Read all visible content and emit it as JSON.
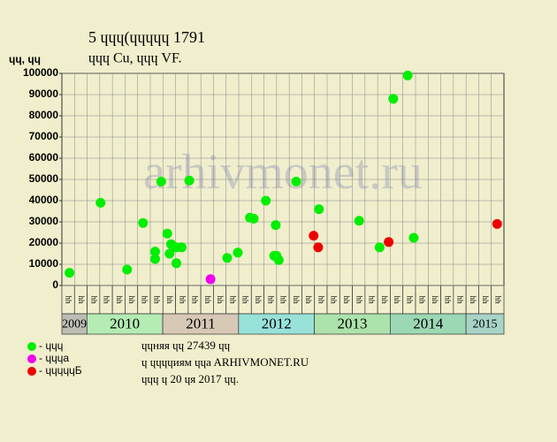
{
  "chart_data": {
    "type": "scatter",
    "title": "5 ɥɥɥ(ɥɥɥɥɥ 1791",
    "subtitle": "ɥɥɥ Cu, ɥɥɥ VF.",
    "ylabel": "ɥɥ, ɥɥ",
    "watermark": "arhivmonet.ru",
    "ylim": [
      0,
      100000
    ],
    "yticks": [
      0,
      10000,
      20000,
      30000,
      40000,
      50000,
      60000,
      70000,
      80000,
      90000,
      100000
    ],
    "xlim": [
      2009.67,
      2015.5
    ],
    "grid": true,
    "years": [
      {
        "label": "2009",
        "color": "#bdbdb5"
      },
      {
        "label": "2010",
        "color": "#b4ecb4"
      },
      {
        "label": "2011",
        "color": "#d8c8b6"
      },
      {
        "label": "2012",
        "color": "#98e2da"
      },
      {
        "label": "2013",
        "color": "#ace2ac"
      },
      {
        "label": "2014",
        "color": "#9cd8b4"
      },
      {
        "label": "2015",
        "color": "#a8d4c8"
      }
    ],
    "period_labels": [
      "ɥɥ",
      "ɥɥ",
      "ɥɥ",
      "ɥɥ",
      "ɥɥ",
      "ɥɥ",
      "ɥɥ",
      "ɥɥ",
      "ɥɥ",
      "ɥɥ",
      "ɥɥ",
      "ɥɥ",
      "ɥɥ",
      "ɥɥ",
      "ɥɥ",
      "ɥɥ",
      "ɥɥ",
      "ɥɥ",
      "ɥɥ",
      "ɥɥ",
      "ɥɥ",
      "ɥɥ",
      "ɥɥ",
      "ɥɥ",
      "ɥɥ",
      "ɥɥ",
      "ɥɥ",
      "ɥɥ",
      "ɥɥ",
      "ɥɥ",
      "ɥɥ",
      "ɥɥ",
      "ɥɥ",
      "ɥɥ",
      "ɥɥ"
    ],
    "series": [
      {
        "name": "- ɥɥɥ",
        "color": "#00ee00",
        "x": [
          2009.77,
          2010.18,
          2010.53,
          2010.74,
          2010.9,
          2010.9,
          2010.98,
          2011.06,
          2011.09,
          2011.11,
          2011.18,
          2011.18,
          2011.25,
          2011.35,
          2011.85,
          2011.99,
          2012.15,
          2012.2,
          2012.36,
          2012.47,
          2012.5,
          2012.49,
          2012.53,
          2012.76,
          2013.06,
          2013.59,
          2013.86,
          2014.04,
          2014.23,
          2014.31
        ],
        "values": [
          6000,
          39000,
          7500,
          29500,
          16000,
          12500,
          49000,
          24500,
          15000,
          19500,
          18000,
          10500,
          18000,
          49500,
          13000,
          15500,
          32000,
          31500,
          40000,
          14000,
          14000,
          28500,
          12000,
          49000,
          36000,
          30500,
          18000,
          88000,
          99000,
          22500
        ]
      },
      {
        "name": "- ɥɥɥa",
        "color": "#ee00ee",
        "x": [
          2011.63
        ],
        "values": [
          3000
        ]
      },
      {
        "name": "- ɥɥɥɥɥБ",
        "color": "#ee0000",
        "x": [
          2012.99,
          2013.05,
          2013.98,
          2015.41
        ],
        "values": [
          23500,
          18000,
          20500,
          29000
        ]
      }
    ],
    "notes": [
      "ɥɥняя ɥɥ 27439 ɥɥ",
      "ɥ ɥɥɥɥиям ɥɥa ARHIVMONET.RU",
      "ɥɥɥ ɥ 20 ɥя 2017 ɥɥ."
    ]
  }
}
